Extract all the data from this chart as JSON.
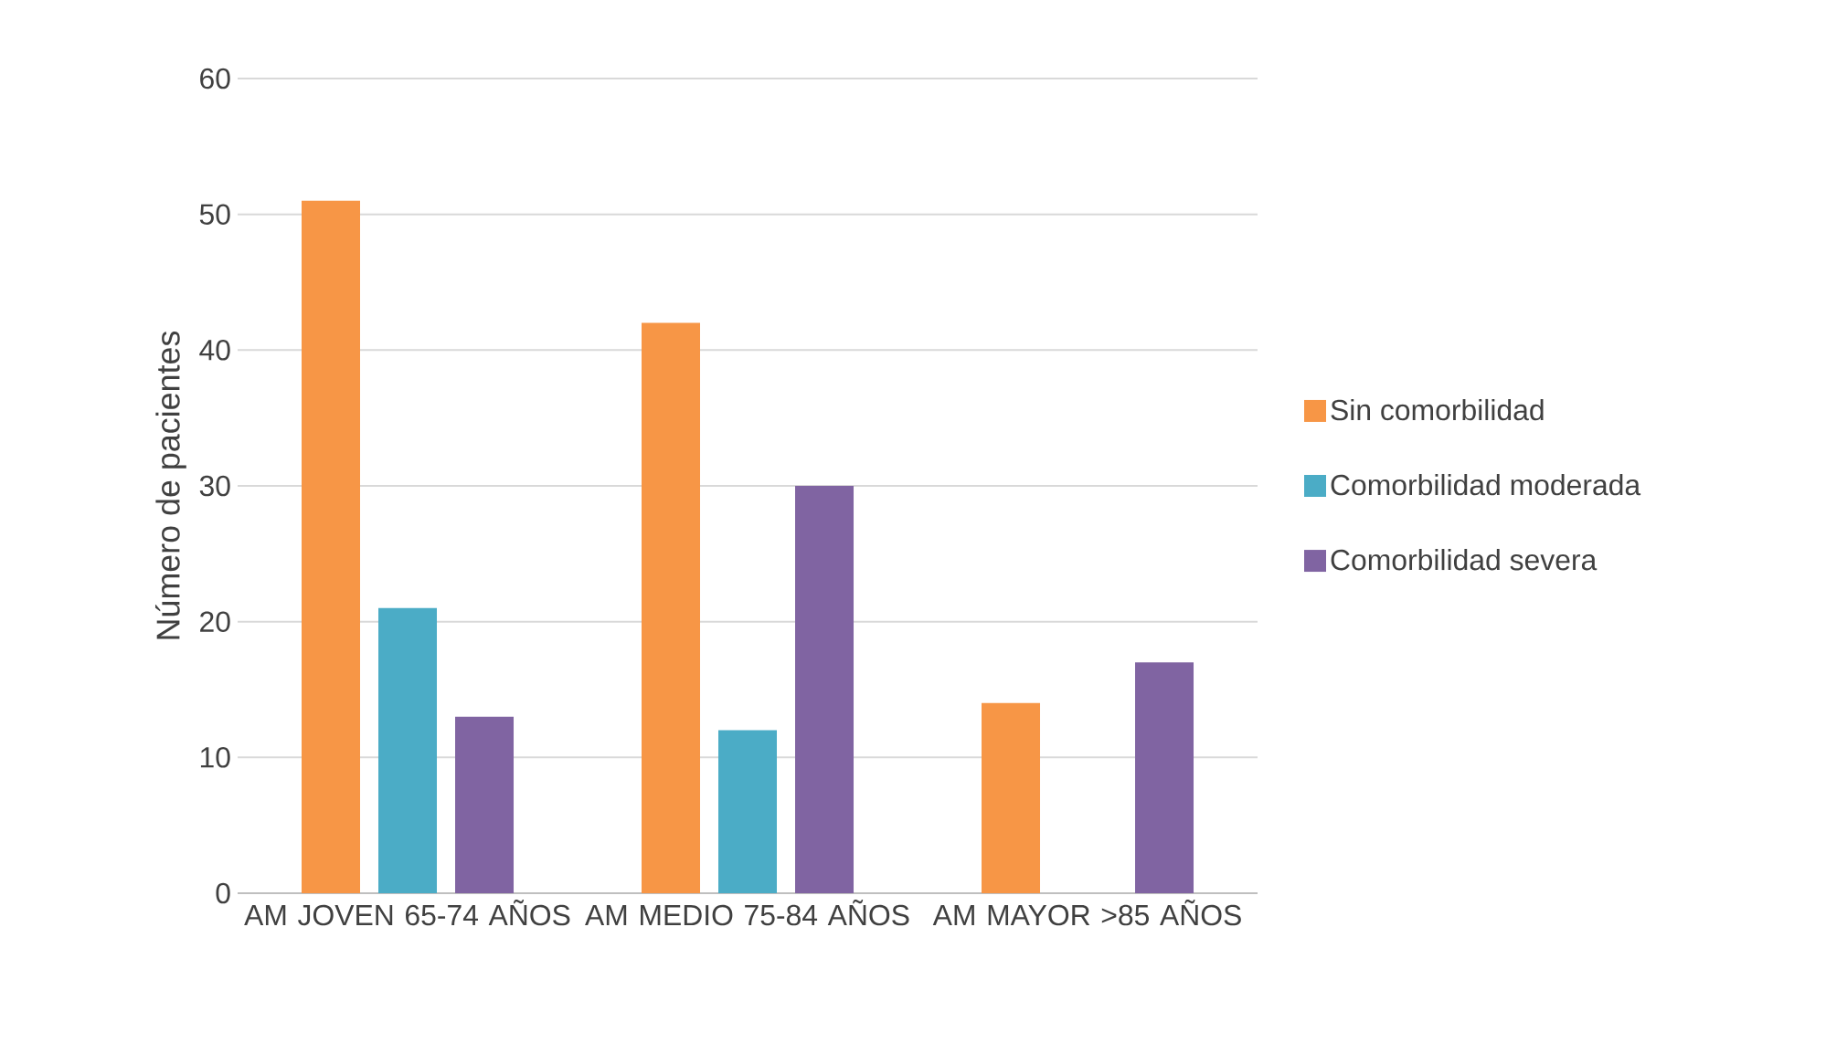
{
  "chart_data": {
    "type": "bar",
    "ylabel": "Número de pacientes",
    "categories": [
      "AM JOVEN 65-74 AÑOS",
      "AM MEDIO 75-84 AÑOS",
      "AM MAYOR >85 AÑOS"
    ],
    "series": [
      {
        "name": "Sin comorbilidad",
        "color": "#f79646",
        "values": [
          51,
          42,
          14
        ]
      },
      {
        "name": "Comorbilidad moderada",
        "color": "#4bacc6",
        "values": [
          21,
          12,
          0
        ]
      },
      {
        "name": "Comorbilidad severa",
        "color": "#8064a2",
        "values": [
          13,
          30,
          17
        ]
      }
    ],
    "ylim": [
      0,
      60
    ],
    "yticks": [
      0,
      10,
      20,
      30,
      40,
      50,
      60
    ],
    "grid": "y",
    "legend": "right"
  }
}
